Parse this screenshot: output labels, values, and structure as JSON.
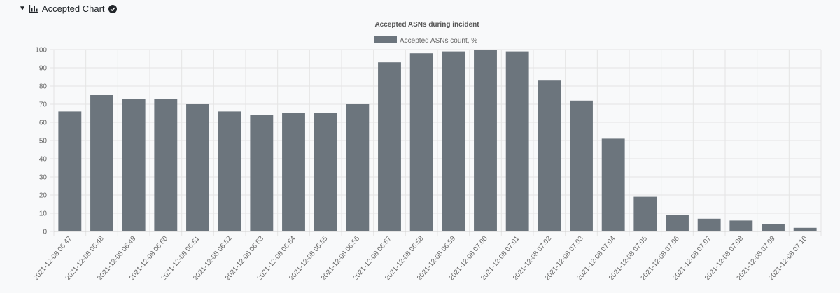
{
  "section": {
    "title": "Accepted Chart",
    "caret": "▼",
    "chart_icon": "bar-chart-icon",
    "status_icon": "check-circle-icon"
  },
  "colors": {
    "bar": "#6c757d",
    "grid": "#e4e4e4",
    "axis_text": "#666666",
    "background": "#f8f9fa"
  },
  "chart_data": {
    "type": "bar",
    "title": "Accepted ASNs during incident",
    "xlabel": "",
    "ylabel": "",
    "ylim": [
      0,
      100
    ],
    "yticks": [
      0,
      10,
      20,
      30,
      40,
      50,
      60,
      70,
      80,
      90,
      100
    ],
    "grid": true,
    "legend_position": "top-center",
    "categories": [
      "2021-12-08 06:47",
      "2021-12-08 06:48",
      "2021-12-08 06:49",
      "2021-12-08 06:50",
      "2021-12-08 06:51",
      "2021-12-08 06:52",
      "2021-12-08 06:53",
      "2021-12-08 06:54",
      "2021-12-08 06:55",
      "2021-12-08 06:56",
      "2021-12-08 06:57",
      "2021-12-08 06:58",
      "2021-12-08 06:59",
      "2021-12-08 07:00",
      "2021-12-08 07:01",
      "2021-12-08 07:02",
      "2021-12-08 07:03",
      "2021-12-08 07:04",
      "2021-12-08 07:05",
      "2021-12-08 07:06",
      "2021-12-08 07:07",
      "2021-12-08 07:08",
      "2021-12-08 07:09",
      "2021-12-08 07:10"
    ],
    "series": [
      {
        "name": "Accepted ASNs count, %",
        "values": [
          66,
          75,
          73,
          73,
          70,
          66,
          64,
          65,
          65,
          70,
          93,
          98,
          99,
          100,
          99,
          83,
          72,
          51,
          19,
          9,
          7,
          6,
          4,
          2
        ]
      }
    ]
  }
}
